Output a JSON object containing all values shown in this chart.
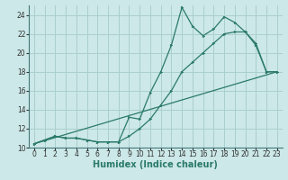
{
  "title": "",
  "xlabel": "Humidex (Indice chaleur)",
  "bg_color": "#cce8e8",
  "line_color": "#2a7a6a",
  "grid_color": "#aacece",
  "xlim": [
    -0.5,
    23.5
  ],
  "ylim": [
    10,
    25
  ],
  "xticks": [
    0,
    1,
    2,
    3,
    4,
    5,
    6,
    7,
    8,
    9,
    10,
    11,
    12,
    13,
    14,
    15,
    16,
    17,
    18,
    19,
    20,
    21,
    22,
    23
  ],
  "yticks": [
    10,
    12,
    14,
    16,
    18,
    20,
    22,
    24
  ],
  "line1_x": [
    0,
    1,
    2,
    3,
    4,
    5,
    6,
    7,
    8,
    9,
    10,
    11,
    12,
    13,
    14,
    15,
    16,
    17,
    18,
    19,
    20,
    21,
    22,
    23
  ],
  "line1_y": [
    10.4,
    10.8,
    11.2,
    11.0,
    11.0,
    10.8,
    10.6,
    10.6,
    10.6,
    13.2,
    13.0,
    15.8,
    18.0,
    20.8,
    24.8,
    22.8,
    21.8,
    22.5,
    23.8,
    23.2,
    22.2,
    20.8,
    18.0,
    18.0
  ],
  "line2_x": [
    0,
    1,
    2,
    3,
    4,
    5,
    6,
    7,
    8,
    9,
    10,
    11,
    12,
    13,
    14,
    15,
    16,
    17,
    18,
    19,
    20,
    21,
    22,
    23
  ],
  "line2_y": [
    10.4,
    10.8,
    11.2,
    11.0,
    11.0,
    10.8,
    10.6,
    10.6,
    10.6,
    11.2,
    12.0,
    13.0,
    14.5,
    16.0,
    18.0,
    19.0,
    20.0,
    21.0,
    22.0,
    22.2,
    22.2,
    21.0,
    18.0,
    18.0
  ],
  "line3_x": [
    0,
    23
  ],
  "line3_y": [
    10.4,
    18.0
  ],
  "tick_fontsize": 5.5,
  "xlabel_fontsize": 7,
  "xlabel_color": "#2a7a6a"
}
